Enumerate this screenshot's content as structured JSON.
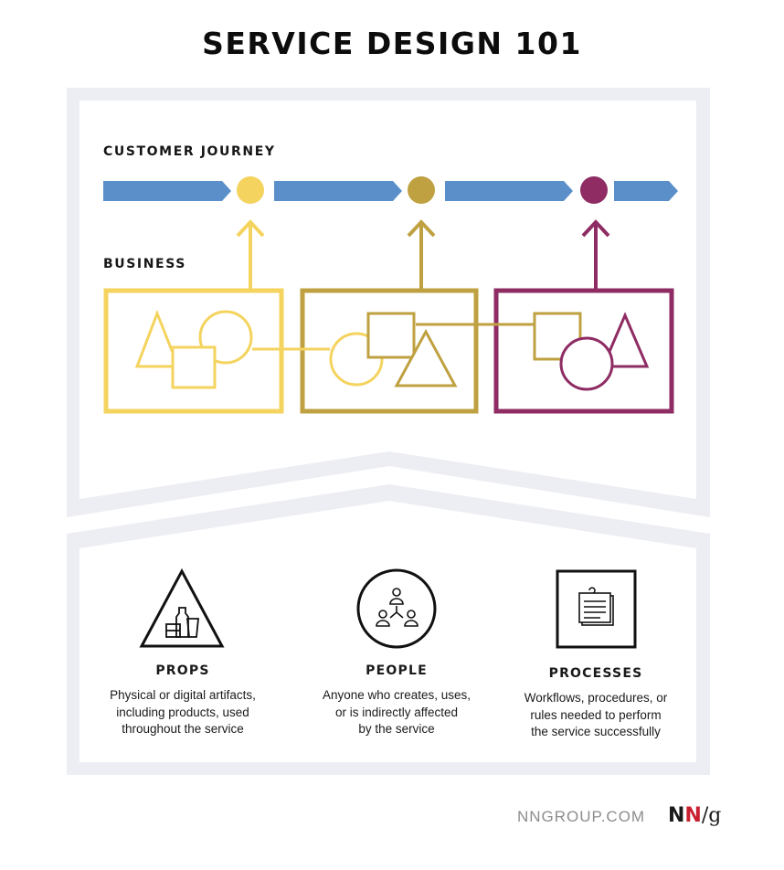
{
  "title": "SERVICE DESIGN 101",
  "journey": {
    "label": "CUSTOMER JOURNEY"
  },
  "business": {
    "label": "BUSINESS"
  },
  "colors": {
    "yellow": "#F4D35E",
    "gold": "#BFA141",
    "magenta": "#8E2C63",
    "blue": "#5B8FC9",
    "frame": "#EDEEF3"
  },
  "pillars": [
    {
      "title": "PROPS",
      "description": [
        "Physical or digital artifacts,",
        "including products, used",
        "throughout the service"
      ],
      "icon": "props-triangle-icon"
    },
    {
      "title": "PEOPLE",
      "description": [
        "Anyone who creates, uses,",
        "or is indirectly affected",
        "by the service"
      ],
      "icon": "people-circle-icon"
    },
    {
      "title": "PROCESSES",
      "description": [
        "Workflows, procedures, or",
        "rules needed to perform",
        "the service successfully"
      ],
      "icon": "processes-square-icon"
    }
  ],
  "footer": {
    "site": "NNGROUP.COM",
    "logo_n1": "N",
    "logo_n2": "N",
    "logo_slash": "/",
    "logo_g": "g"
  }
}
